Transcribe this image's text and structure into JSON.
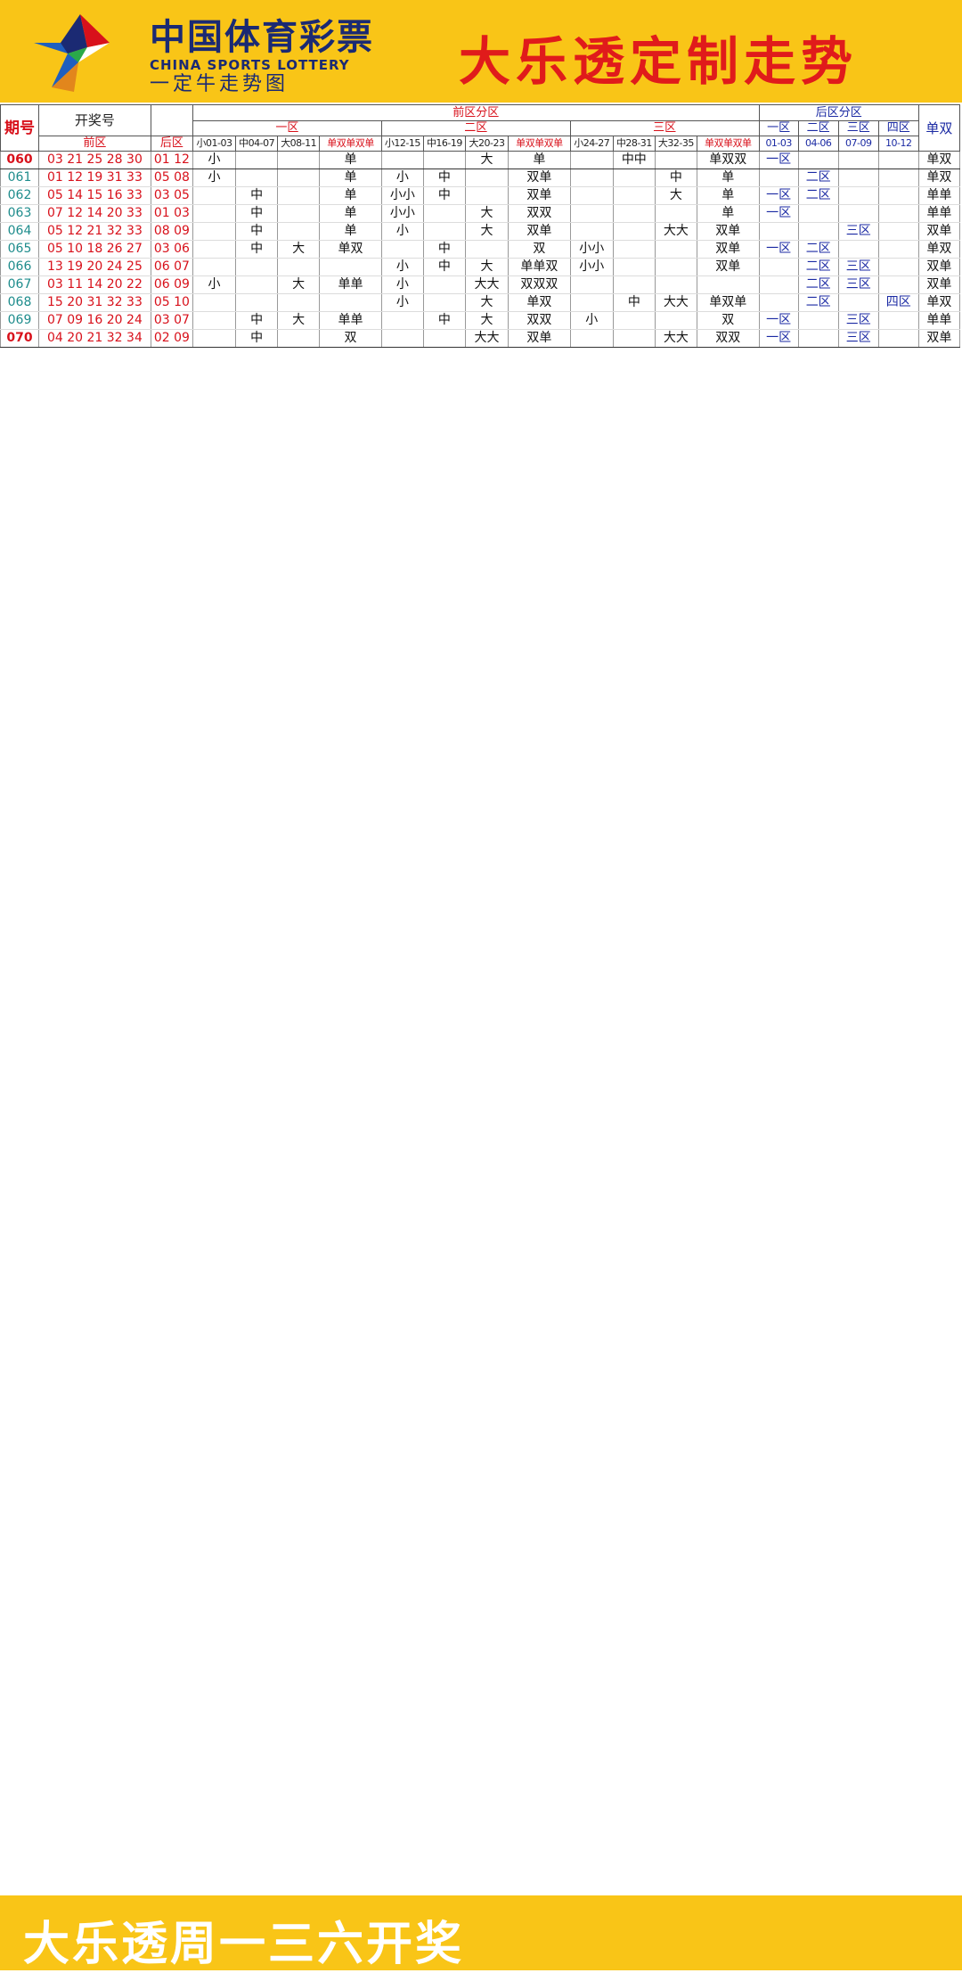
{
  "header": {
    "logo_cn": "中国体育彩票",
    "logo_en": "CHINA SPORTS LOTTERY",
    "logo_sub": "一定牛走势图",
    "title": "大乐透定制走势"
  },
  "footer": {
    "text": "大乐透周一三六开奖"
  },
  "table_headers": {
    "period": "期号",
    "draw": "开奖号",
    "front": "前区",
    "back": "后区",
    "front_zone": "前区分区",
    "zone1": "一区",
    "zone2": "二区",
    "zone3": "三区",
    "oe": "单双",
    "z1_cols": [
      "小01-03",
      "中04-07",
      "大08-11",
      "单双单双单"
    ],
    "z2_cols": [
      "小12-15",
      "中16-19",
      "大20-23",
      "单双单双单"
    ],
    "z3_cols": [
      "小24-27",
      "中28-31",
      "大32-35",
      "单双单双单"
    ],
    "back_zone": "后区分区",
    "back_zones": [
      "一区",
      "二区",
      "三区",
      "四区"
    ],
    "back_ranges": [
      "01-03",
      "04-06",
      "07-09",
      "10-12"
    ],
    "back_oe": "单双"
  },
  "colors": {
    "yellow": "#f9c517",
    "red": "#d8111b",
    "blue": "#1b2aa3",
    "teal": "#1e8c8c"
  },
  "rows": [
    [
      "060",
      "03 21 25 28 30",
      "01 12",
      "小",
      "",
      "",
      "单",
      "",
      "",
      "大",
      "单",
      "",
      "中中",
      "",
      "单双双",
      "一区",
      "",
      "",
      "",
      "单双"
    ],
    [
      "061",
      "01 12 19 31 33",
      "05 08",
      "小",
      "",
      "",
      "单",
      "小",
      "中",
      "",
      "双单",
      "",
      "",
      "中",
      "单",
      "",
      "二区",
      "",
      "",
      "单双"
    ],
    [
      "062",
      "05 14 15 16 33",
      "03 05",
      "",
      "中",
      "",
      "单",
      "小小",
      "中",
      "",
      "双单",
      "",
      "",
      "大",
      "单",
      "一区",
      "二区",
      "",
      "",
      "单单"
    ],
    [
      "063",
      "07 12 14 20 33",
      "01 03",
      "",
      "中",
      "",
      "单",
      "小小",
      "",
      "大",
      "双双",
      "",
      "",
      "",
      "单",
      "一区",
      "",
      "",
      "",
      "单单"
    ],
    [
      "064",
      "05 12 21 32 33",
      "08 09",
      "",
      "中",
      "",
      "单",
      "小",
      "",
      "大",
      "双单",
      "",
      "",
      "大大",
      "双单",
      "",
      "",
      "三区",
      "",
      "双单"
    ],
    [
      "065",
      "05 10 18 26 27",
      "03 06",
      "",
      "中",
      "大",
      "单双",
      "",
      "中",
      "",
      "双",
      "小小",
      "",
      "",
      "双单",
      "一区",
      "二区",
      "",
      "",
      "单双"
    ],
    [
      "066",
      "13 19 20 24 25",
      "06 07",
      "",
      "",
      "",
      "",
      "小",
      "中",
      "大",
      "单单双",
      "小小",
      "",
      "",
      "双单",
      "",
      "二区",
      "三区",
      "",
      "双单"
    ],
    [
      "067",
      "03 11 14 20 22",
      "06 09",
      "小",
      "",
      "大",
      "单单",
      "小",
      "",
      "大大",
      "双双双",
      "",
      "",
      "",
      "",
      "",
      "二区",
      "三区",
      "",
      "双单"
    ],
    [
      "068",
      "15 20 31 32 33",
      "05 10",
      "",
      "",
      "",
      "",
      "小",
      "",
      "大",
      "单双",
      "",
      "中",
      "大大",
      "单双单",
      "",
      "二区",
      "",
      "四区",
      "单双"
    ],
    [
      "069",
      "07 09 16 20 24",
      "03 07",
      "",
      "中",
      "大",
      "单单",
      "",
      "中",
      "大",
      "双双",
      "小",
      "",
      "",
      "双",
      "一区",
      "",
      "三区",
      "",
      "单单"
    ],
    [
      "070",
      "04 20 21 32 34",
      "02 09",
      "",
      "中",
      "",
      "双",
      "",
      "",
      "大大",
      "双单",
      "",
      "",
      "大大",
      "双双",
      "一区",
      "",
      "三区",
      "",
      "双单"
    ]
  ]
}
